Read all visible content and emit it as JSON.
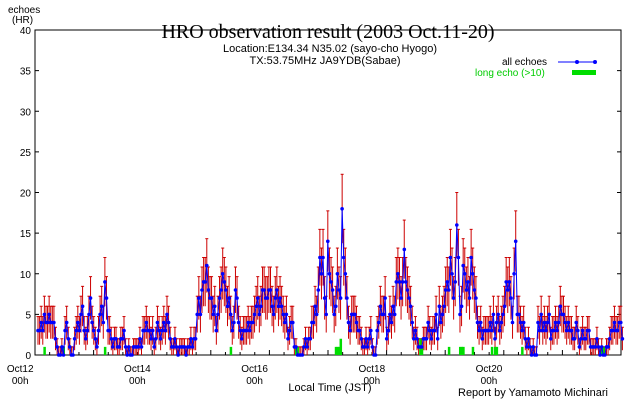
{
  "chart_data": {
    "type": "line",
    "title": "HRO observation result (2003 Oct.11-20)",
    "subtitle_location": "Location:E134.34 N35.02 (sayo-cho Hyogo)",
    "subtitle_tx": "TX:53.75MHz JA9YDB(Sabae)",
    "ylabel": "echoes",
    "yunit": "(HR)",
    "xlabel": "Local Time (JST)",
    "credit": "Report by Yamamoto Michinari",
    "ylim": [
      0,
      40
    ],
    "yticks": [
      0,
      5,
      10,
      15,
      20,
      25,
      30,
      35,
      40
    ],
    "xlim_hours": [
      0,
      240
    ],
    "xticks": [
      {
        "hour": 48,
        "date": "Oct12",
        "time": "00h"
      },
      {
        "hour": 96,
        "date": "Oct14",
        "time": "00h"
      },
      {
        "hour": 144,
        "date": "Oct16",
        "time": "00h"
      },
      {
        "hour": 192,
        "date": "Oct18",
        "time": "00h"
      },
      {
        "hour": 240,
        "date": "Oct20",
        "time": "00h"
      }
    ],
    "legend_position": "top-right",
    "series": [
      {
        "name": "all echoes",
        "color": "#0000ff",
        "errorbar_color": "#cc0000",
        "values": [
          3,
          3,
          4,
          3,
          5,
          4,
          4,
          5,
          4,
          4,
          4,
          2,
          1,
          0,
          0,
          1,
          0,
          3,
          4,
          2,
          1,
          0,
          0,
          2,
          3,
          4,
          3,
          5,
          6,
          3,
          2,
          3,
          5,
          7,
          4,
          3,
          2,
          1,
          3,
          5,
          6,
          4,
          9,
          7,
          3,
          3,
          2,
          1,
          2,
          2,
          1,
          1,
          2,
          2,
          3,
          1,
          0,
          1,
          0,
          0,
          1,
          1,
          1,
          1,
          2,
          1,
          3,
          3,
          4,
          3,
          3,
          2,
          3,
          1,
          2,
          4,
          3,
          2,
          3,
          4,
          3,
          5,
          4,
          2,
          1,
          1,
          2,
          1,
          0,
          1,
          1,
          1,
          1,
          0,
          1,
          1,
          2,
          1,
          2,
          2,
          5,
          7,
          5,
          8,
          9,
          9,
          11,
          8,
          7,
          7,
          5,
          6,
          3,
          5,
          7,
          8,
          10,
          9,
          8,
          6,
          7,
          5,
          3,
          4,
          8,
          7,
          4,
          3,
          2,
          3,
          3,
          3,
          4,
          3,
          4,
          4,
          5,
          6,
          7,
          5,
          6,
          8,
          8,
          7,
          7,
          8,
          8,
          6,
          5,
          7,
          8,
          6,
          7,
          6,
          5,
          4,
          5,
          2,
          3,
          4,
          4,
          1,
          1,
          0,
          0,
          0,
          0,
          1,
          2,
          1,
          2,
          2,
          4,
          4,
          6,
          5,
          8,
          12,
          10,
          12,
          7,
          5,
          14,
          10,
          9,
          8,
          5,
          6,
          10,
          8,
          7,
          18,
          12,
          10,
          7,
          4,
          3,
          5,
          5,
          5,
          4,
          3,
          3,
          2,
          1,
          1,
          2,
          1,
          2,
          3,
          1,
          0,
          0,
          3,
          4,
          6,
          5,
          5,
          7,
          2,
          3,
          5,
          4,
          6,
          5,
          9,
          10,
          9,
          7,
          9,
          13,
          9,
          8,
          7,
          6,
          4,
          2,
          3,
          2,
          1,
          1,
          1,
          2,
          2,
          2,
          4,
          3,
          2,
          3,
          3,
          5,
          2,
          6,
          4,
          5,
          6,
          8,
          9,
          8,
          12,
          10,
          7,
          9,
          16,
          12,
          5,
          6,
          11,
          10,
          8,
          9,
          7,
          12,
          10,
          8,
          7,
          4,
          3,
          4,
          2,
          3,
          3,
          3,
          3,
          4,
          3,
          5,
          2,
          4,
          5,
          3,
          4,
          5,
          6,
          9,
          8,
          9,
          7,
          4,
          10,
          14,
          5,
          5,
          4,
          3,
          4,
          2,
          1,
          2,
          1,
          0,
          1,
          0,
          0,
          4,
          3,
          5,
          3,
          4,
          3,
          4,
          5,
          2,
          3,
          3,
          4,
          3,
          4,
          6,
          5,
          5,
          4,
          3,
          4,
          3,
          3,
          2,
          2,
          4,
          3,
          1,
          2,
          3,
          2,
          2,
          3,
          3,
          1,
          1,
          1,
          1,
          2,
          1,
          0,
          1,
          0,
          0,
          1,
          1,
          2,
          3,
          3,
          4,
          3,
          3,
          4,
          4,
          2
        ]
      },
      {
        "name": "long echo (>10)",
        "color": "#00dd00",
        "values": [
          0,
          0,
          0,
          0,
          1,
          0,
          0,
          0,
          0,
          0,
          0,
          0,
          0,
          0,
          0,
          0,
          1,
          0,
          0,
          0,
          0,
          0,
          0,
          0,
          0,
          0,
          0,
          0,
          0,
          0,
          0,
          0,
          0,
          0,
          0,
          0,
          0,
          0,
          0,
          0,
          0,
          0,
          1,
          0,
          0,
          0,
          0,
          0,
          0,
          0,
          0,
          0,
          0,
          0,
          0,
          0,
          0,
          0,
          0,
          0,
          0,
          0,
          0,
          0,
          0,
          0,
          0,
          0,
          0,
          0,
          0,
          0,
          0,
          0,
          0,
          0,
          0,
          0,
          0,
          0,
          0,
          0,
          0,
          0,
          0,
          0,
          0,
          0,
          0,
          0,
          0,
          0,
          0,
          0,
          0,
          0,
          0,
          0,
          0,
          0,
          0,
          0,
          0,
          0,
          0,
          0,
          0,
          0,
          0,
          0,
          0,
          0,
          0,
          0,
          0,
          0,
          0,
          0,
          0,
          0,
          0,
          1,
          0,
          0,
          0,
          0,
          0,
          0,
          0,
          0,
          0,
          0,
          0,
          0,
          0,
          0,
          0,
          0,
          0,
          0,
          0,
          0,
          0,
          0,
          0,
          0,
          0,
          0,
          0,
          0,
          0,
          0,
          0,
          0,
          0,
          0,
          0,
          0,
          0,
          0,
          0,
          0,
          1,
          1,
          0,
          0,
          0,
          0,
          0,
          0,
          0,
          0,
          0,
          0,
          0,
          0,
          0,
          0,
          0,
          0,
          0,
          0,
          0,
          0,
          0,
          0,
          0,
          1,
          1,
          1,
          2,
          0,
          0,
          0,
          0,
          0,
          0,
          0,
          0,
          0,
          0,
          0,
          0,
          0,
          0,
          0,
          0,
          0,
          0,
          0,
          0,
          0,
          0,
          0,
          0,
          0,
          0,
          0,
          0,
          0,
          0,
          0,
          0,
          0,
          0,
          0,
          0,
          0,
          0,
          0,
          0,
          0,
          0,
          0,
          0,
          0,
          0,
          0,
          0,
          0,
          2,
          1,
          0,
          0,
          0,
          0,
          0,
          0,
          0,
          0,
          0,
          0,
          0,
          0,
          0,
          0,
          0,
          0,
          1,
          0,
          0,
          0,
          0,
          0,
          0,
          1,
          1,
          1,
          0,
          0,
          0,
          0,
          0,
          1,
          0,
          0,
          0,
          0,
          0,
          0,
          0,
          0,
          0,
          0,
          0,
          1,
          0,
          1,
          1,
          0,
          0,
          0,
          0,
          0,
          0,
          0,
          0,
          0,
          0,
          0,
          0,
          0,
          0,
          0,
          1,
          0,
          0,
          0,
          0,
          0,
          0,
          0,
          0,
          0,
          0,
          0,
          0,
          0,
          0,
          0,
          0,
          0,
          0,
          0,
          0,
          0,
          0,
          0,
          0,
          0,
          0,
          0,
          0,
          0,
          0,
          0,
          0,
          0,
          0,
          0,
          0,
          0,
          0,
          0,
          0,
          0,
          0,
          0,
          0,
          0,
          0,
          0,
          0,
          0,
          1,
          1,
          0,
          0,
          0,
          0,
          0,
          0,
          0,
          0,
          0,
          0,
          0,
          0,
          0,
          0,
          0,
          0,
          0,
          0,
          0,
          0,
          0,
          0,
          0,
          0,
          0,
          0,
          0
        ]
      }
    ]
  }
}
